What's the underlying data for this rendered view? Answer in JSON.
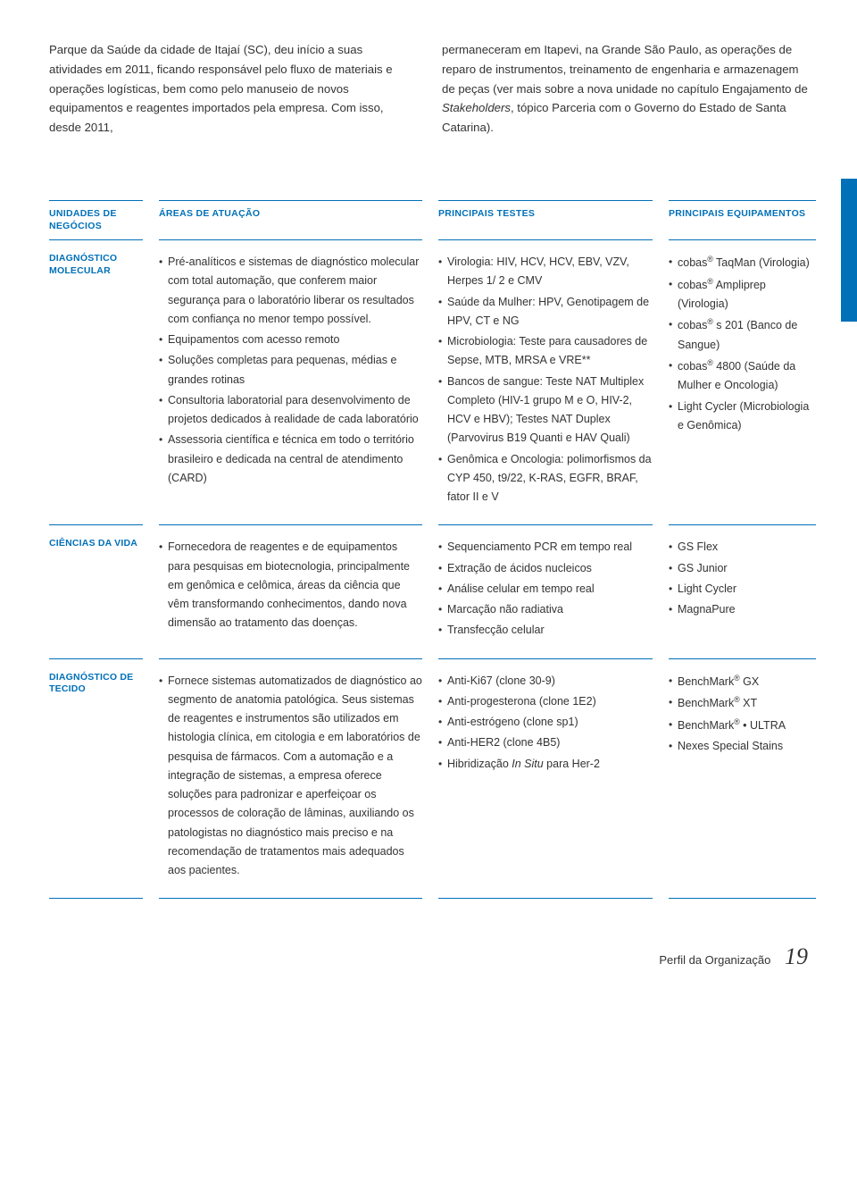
{
  "intro": {
    "left": "Parque da Saúde da cidade de Itajaí (SC), deu início a suas atividades em 2011, ficando responsável pelo fluxo de materiais e operações logísticas, bem como pelo manuseio de novos equipamentos e reagentes importados pela empresa. Com isso, desde 2011,",
    "right": "permaneceram em Itapevi, na Grande São Paulo, as operações de reparo de instrumentos, treinamento de engenharia e armazenagem de peças (ver mais sobre a nova unidade no capítulo Engajamento de Stakeholders, tópico Parceria com o Governo do Estado de Santa Catarina)."
  },
  "headers": {
    "col0": "UNIDADES DE NEGÓCIOS",
    "col1": "ÁREAS DE ATUAÇÃO",
    "col2": "PRINCIPAIS TESTES",
    "col3": "PRINCIPAIS EQUIPAMENTOS"
  },
  "rows": [
    {
      "unit": "DIAGNÓSTICO MOLECULAR",
      "areas": [
        "Pré-analíticos e sistemas de diagnóstico molecular com total automação, que conferem maior segurança para o laboratório liberar os resultados com confiança no menor tempo possível.",
        "Equipamentos com acesso remoto",
        "Soluções completas para pequenas, médias e grandes rotinas",
        "Consultoria laboratorial para desenvolvimento de projetos dedicados à realidade de cada laboratório",
        "Assessoria científica e técnica em todo o território brasileiro e dedicada na central de atendimento (CARD)"
      ],
      "testes": [
        "Virologia: HIV, HCV, HCV, EBV, VZV, Herpes 1/ 2 e CMV",
        "Saúde da Mulher: HPV, Genotipagem de HPV, CT e NG",
        "Microbiologia: Teste para causadores de Sepse, MTB, MRSA e VRE**",
        "Bancos de sangue: Teste NAT Multiplex Completo (HIV-1 grupo M e O, HIV-2, HCV e HBV); Testes NAT Duplex (Parvovirus B19 Quanti e HAV Quali)",
        "Genômica e Oncologia: polimorfismos da CYP 450, t9/22, K-RAS, EGFR, BRAF, fator II e V"
      ],
      "equip": [
        "cobas® TaqMan (Virologia)",
        "cobas® Ampliprep (Virologia)",
        "cobas® s 201 (Banco de Sangue)",
        "cobas® 4800 (Saúde da Mulher e Oncologia)",
        "Light Cycler (Microbiologia e Genômica)"
      ]
    },
    {
      "unit": "CIÊNCIAS DA VIDA",
      "areas": [
        "Fornecedora de reagentes e de equipamentos para pesquisas em biotecnologia, principalmente em genômica e celômica, áreas da ciência que vêm transformando conhecimentos, dando nova dimensão ao tratamento das doenças."
      ],
      "testes": [
        "Sequenciamento PCR em tempo real",
        "Extração de ácidos nucleicos",
        "Análise celular em tempo real",
        "Marcação não radiativa",
        "Transfecção celular"
      ],
      "equip": [
        "GS Flex",
        "GS Junior",
        "Light Cycler",
        "MagnaPure"
      ]
    },
    {
      "unit": "DIAGNÓSTICO DE TECIDO",
      "areas": [
        "Fornece sistemas automatizados de diagnóstico ao segmento de anatomia patológica. Seus sistemas de reagentes e instrumentos são utilizados em histologia clínica, em citologia e em laboratórios de pesquisa de fármacos. Com a automação e a integração de sistemas, a empresa oferece soluções para padronizar e aperfeiçoar os processos de coloração de lâminas, auxiliando os patologistas no diagnóstico mais preciso e na recomendação de tratamentos mais adequados aos pacientes."
      ],
      "testes": [
        "Anti-Ki67 (clone 30-9)",
        "Anti-progesterona (clone 1E2)",
        "Anti-estrógeno (clone sp1)",
        "Anti-HER2 (clone 4B5)",
        "Hibridização In Situ para Her-2"
      ],
      "equip": [
        "BenchMark® GX",
        "BenchMark® XT",
        "BenchMark® • ULTRA",
        "Nexes Special Stains"
      ]
    }
  ],
  "footer": {
    "label": "Perfil da Organização",
    "page": "19"
  },
  "colors": {
    "accent": "#0070b8",
    "text": "#333333",
    "bg": "#ffffff"
  }
}
